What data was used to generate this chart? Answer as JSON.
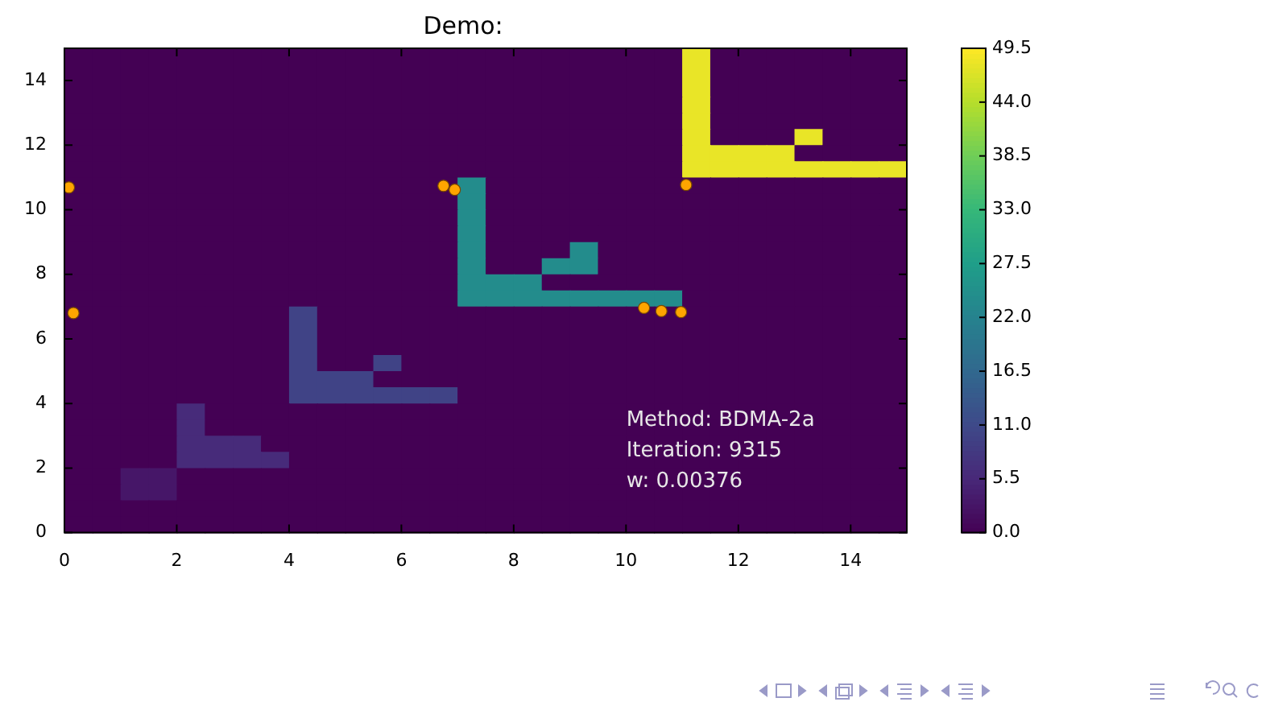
{
  "chart_data": {
    "type": "heatmap",
    "title": "Demo:",
    "cells": [
      [
        0,
        0,
        0,
        0,
        0,
        0,
        0,
        0,
        0,
        0,
        0,
        0,
        0,
        0,
        0,
        0,
        0,
        0,
        0,
        0,
        0,
        0,
        48,
        0,
        0,
        0,
        0,
        0,
        0,
        0
      ],
      [
        0,
        0,
        0,
        0,
        0,
        0,
        0,
        0,
        0,
        0,
        0,
        0,
        0,
        0,
        0,
        0,
        0,
        0,
        0,
        0,
        0,
        0,
        48,
        0,
        0,
        0,
        0,
        0,
        0,
        0
      ],
      [
        0,
        0,
        0,
        0,
        0,
        0,
        0,
        0,
        0,
        0,
        0,
        0,
        0,
        0,
        0,
        0,
        0,
        0,
        0,
        0,
        0,
        0,
        48,
        0,
        0,
        0,
        0,
        0,
        0,
        0
      ],
      [
        0,
        0,
        0,
        0,
        0,
        0,
        0,
        0,
        0,
        0,
        0,
        0,
        0,
        0,
        0,
        0,
        0,
        0,
        0,
        0,
        0,
        0,
        48,
        0,
        0,
        0,
        0,
        0,
        0,
        0
      ],
      [
        0,
        0,
        0,
        0,
        0,
        0,
        0,
        0,
        0,
        0,
        0,
        0,
        0,
        0,
        0,
        0,
        0,
        0,
        0,
        0,
        0,
        0,
        48,
        0,
        0,
        0,
        0,
        0,
        0,
        0
      ],
      [
        0,
        0,
        0,
        0,
        0,
        0,
        0,
        0,
        0,
        0,
        0,
        0,
        0,
        0,
        0,
        0,
        0,
        0,
        0,
        0,
        0,
        0,
        48,
        0,
        0,
        0,
        48,
        0,
        0,
        0
      ],
      [
        0,
        0,
        0,
        0,
        0,
        0,
        0,
        0,
        0,
        0,
        0,
        0,
        0,
        0,
        0,
        0,
        0,
        0,
        0,
        0,
        0,
        0,
        48,
        48,
        48,
        48,
        0,
        0,
        0,
        0
      ],
      [
        0,
        0,
        0,
        0,
        0,
        0,
        0,
        0,
        0,
        0,
        0,
        0,
        0,
        0,
        0,
        0,
        0,
        0,
        0,
        0,
        0,
        0,
        48,
        48,
        48,
        48,
        48,
        48,
        48,
        48
      ],
      [
        0,
        0,
        0,
        0,
        0,
        0,
        0,
        0,
        0,
        0,
        0,
        0,
        0,
        0,
        24,
        0,
        0,
        0,
        0,
        0,
        0,
        0,
        0,
        0,
        0,
        0,
        0,
        0,
        0,
        0
      ],
      [
        0,
        0,
        0,
        0,
        0,
        0,
        0,
        0,
        0,
        0,
        0,
        0,
        0,
        0,
        24,
        0,
        0,
        0,
        0,
        0,
        0,
        0,
        0,
        0,
        0,
        0,
        0,
        0,
        0,
        0
      ],
      [
        0,
        0,
        0,
        0,
        0,
        0,
        0,
        0,
        0,
        0,
        0,
        0,
        0,
        0,
        24,
        0,
        0,
        0,
        0,
        0,
        0,
        0,
        0,
        0,
        0,
        0,
        0,
        0,
        0,
        0
      ],
      [
        0,
        0,
        0,
        0,
        0,
        0,
        0,
        0,
        0,
        0,
        0,
        0,
        0,
        0,
        24,
        0,
        0,
        0,
        0,
        0,
        0,
        0,
        0,
        0,
        0,
        0,
        0,
        0,
        0,
        0
      ],
      [
        0,
        0,
        0,
        0,
        0,
        0,
        0,
        0,
        0,
        0,
        0,
        0,
        0,
        0,
        24,
        0,
        0,
        0,
        24,
        0,
        0,
        0,
        0,
        0,
        0,
        0,
        0,
        0,
        0,
        0
      ],
      [
        0,
        0,
        0,
        0,
        0,
        0,
        0,
        0,
        0,
        0,
        0,
        0,
        0,
        0,
        24,
        0,
        0,
        24,
        24,
        0,
        0,
        0,
        0,
        0,
        0,
        0,
        0,
        0,
        0,
        0
      ],
      [
        0,
        0,
        0,
        0,
        0,
        0,
        0,
        0,
        0,
        0,
        0,
        0,
        0,
        0,
        24,
        24,
        24,
        0,
        0,
        0,
        0,
        0,
        0,
        0,
        0,
        0,
        0,
        0,
        0,
        0
      ],
      [
        0,
        0,
        0,
        0,
        0,
        0,
        0,
        0,
        0,
        0,
        0,
        0,
        0,
        0,
        24,
        24,
        24,
        24,
        24,
        24,
        24,
        24,
        0,
        0,
        0,
        0,
        0,
        0,
        0,
        0
      ],
      [
        0,
        0,
        0,
        0,
        0,
        0,
        0,
        0,
        10,
        0,
        0,
        0,
        0,
        0,
        0,
        0,
        0,
        0,
        0,
        0,
        0,
        0,
        0,
        0,
        0,
        0,
        0,
        0,
        0,
        0
      ],
      [
        0,
        0,
        0,
        0,
        0,
        0,
        0,
        0,
        10,
        0,
        0,
        0,
        0,
        0,
        0,
        0,
        0,
        0,
        0,
        0,
        0,
        0,
        0,
        0,
        0,
        0,
        0,
        0,
        0,
        0
      ],
      [
        0,
        0,
        0,
        0,
        0,
        0,
        0,
        0,
        10,
        0,
        0,
        0,
        0,
        0,
        0,
        0,
        0,
        0,
        0,
        0,
        0,
        0,
        0,
        0,
        0,
        0,
        0,
        0,
        0,
        0
      ],
      [
        0,
        0,
        0,
        0,
        0,
        0,
        0,
        0,
        10,
        0,
        0,
        10,
        0,
        0,
        0,
        0,
        0,
        0,
        0,
        0,
        0,
        0,
        0,
        0,
        0,
        0,
        0,
        0,
        0,
        0
      ],
      [
        0,
        0,
        0,
        0,
        0,
        0,
        0,
        0,
        10,
        10,
        10,
        0,
        0,
        0,
        0,
        0,
        0,
        0,
        0,
        0,
        0,
        0,
        0,
        0,
        0,
        0,
        0,
        0,
        0,
        0
      ],
      [
        0,
        0,
        0,
        0,
        0,
        0,
        0,
        0,
        10,
        10,
        10,
        10,
        10,
        10,
        0,
        0,
        0,
        0,
        0,
        0,
        0,
        0,
        0,
        0,
        0,
        0,
        0,
        0,
        0,
        0
      ],
      [
        0,
        0,
        0,
        0,
        6,
        0,
        0,
        0,
        0,
        0,
        0,
        0,
        0,
        0,
        0,
        0,
        0,
        0,
        0,
        0,
        0,
        0,
        0,
        0,
        0,
        0,
        0,
        0,
        0,
        0
      ],
      [
        0,
        0,
        0,
        0,
        6,
        0,
        0,
        0,
        0,
        0,
        0,
        0,
        0,
        0,
        0,
        0,
        0,
        0,
        0,
        0,
        0,
        0,
        0,
        0,
        0,
        0,
        0,
        0,
        0,
        0
      ],
      [
        0,
        0,
        0,
        0,
        6,
        6,
        6,
        0,
        0,
        0,
        0,
        0,
        0,
        0,
        0,
        0,
        0,
        0,
        0,
        0,
        0,
        0,
        0,
        0,
        0,
        0,
        0,
        0,
        0,
        0
      ],
      [
        0,
        0,
        0,
        0,
        6,
        6,
        6,
        6,
        0,
        0,
        0,
        0,
        0,
        0,
        0,
        0,
        0,
        0,
        0,
        0,
        0,
        0,
        0,
        0,
        0,
        0,
        0,
        0,
        0,
        0
      ],
      [
        0,
        0,
        3,
        3,
        0,
        0,
        0,
        0,
        0,
        0,
        0,
        0,
        0,
        0,
        0,
        0,
        0,
        0,
        0,
        0,
        0,
        0,
        0,
        0,
        0,
        0,
        0,
        0,
        0,
        0
      ],
      [
        0,
        0,
        3,
        3,
        0,
        0,
        0,
        0,
        0,
        0,
        0,
        0,
        0,
        0,
        0,
        0,
        0,
        0,
        0,
        0,
        0,
        0,
        0,
        0,
        0,
        0,
        0,
        0,
        0,
        0
      ],
      [
        0,
        0,
        0,
        0,
        0,
        0,
        0,
        0,
        0,
        0,
        0,
        0,
        0,
        0,
        0,
        0,
        0,
        0,
        0,
        0,
        0,
        0,
        0,
        0,
        0,
        0,
        0,
        0,
        0,
        0
      ],
      [
        0,
        0,
        0,
        0,
        0,
        0,
        0,
        0,
        0,
        0,
        0,
        0,
        0,
        0,
        0,
        0,
        0,
        0,
        0,
        0,
        0,
        0,
        0,
        0,
        0,
        0,
        0,
        0,
        0,
        0
      ]
    ],
    "clim": [
      0,
      49.5
    ],
    "cticks": [
      {
        "value": 0,
        "label": "0.0"
      },
      5.5,
      {
        "value": 11,
        "label": "11.0"
      },
      16.5,
      {
        "value": 22,
        "label": "22.0"
      },
      27.5,
      {
        "value": 33,
        "label": "33.0"
      },
      38.5,
      {
        "value": 44,
        "label": "44.0"
      },
      49.5
    ],
    "xlim": [
      0,
      15
    ],
    "ylim": [
      0,
      15
    ],
    "xticks": [
      0,
      2,
      4,
      6,
      8,
      10,
      12,
      14
    ],
    "yticks": [
      0,
      2,
      4,
      6,
      8,
      10,
      12,
      14
    ],
    "series": [
      {
        "type": "scatter",
        "color": "#ffa500",
        "x": [
          0.08,
          0.16,
          6.75,
          6.95,
          10.32,
          10.63,
          10.98,
          11.07
        ],
        "values": [
          10.69,
          6.8,
          10.74,
          10.62,
          6.96,
          6.86,
          6.83,
          10.77
        ]
      }
    ],
    "annotations": [
      "Method: BDMA-2a",
      "Iteration: 9315",
      "w: 0.00376"
    ]
  }
}
